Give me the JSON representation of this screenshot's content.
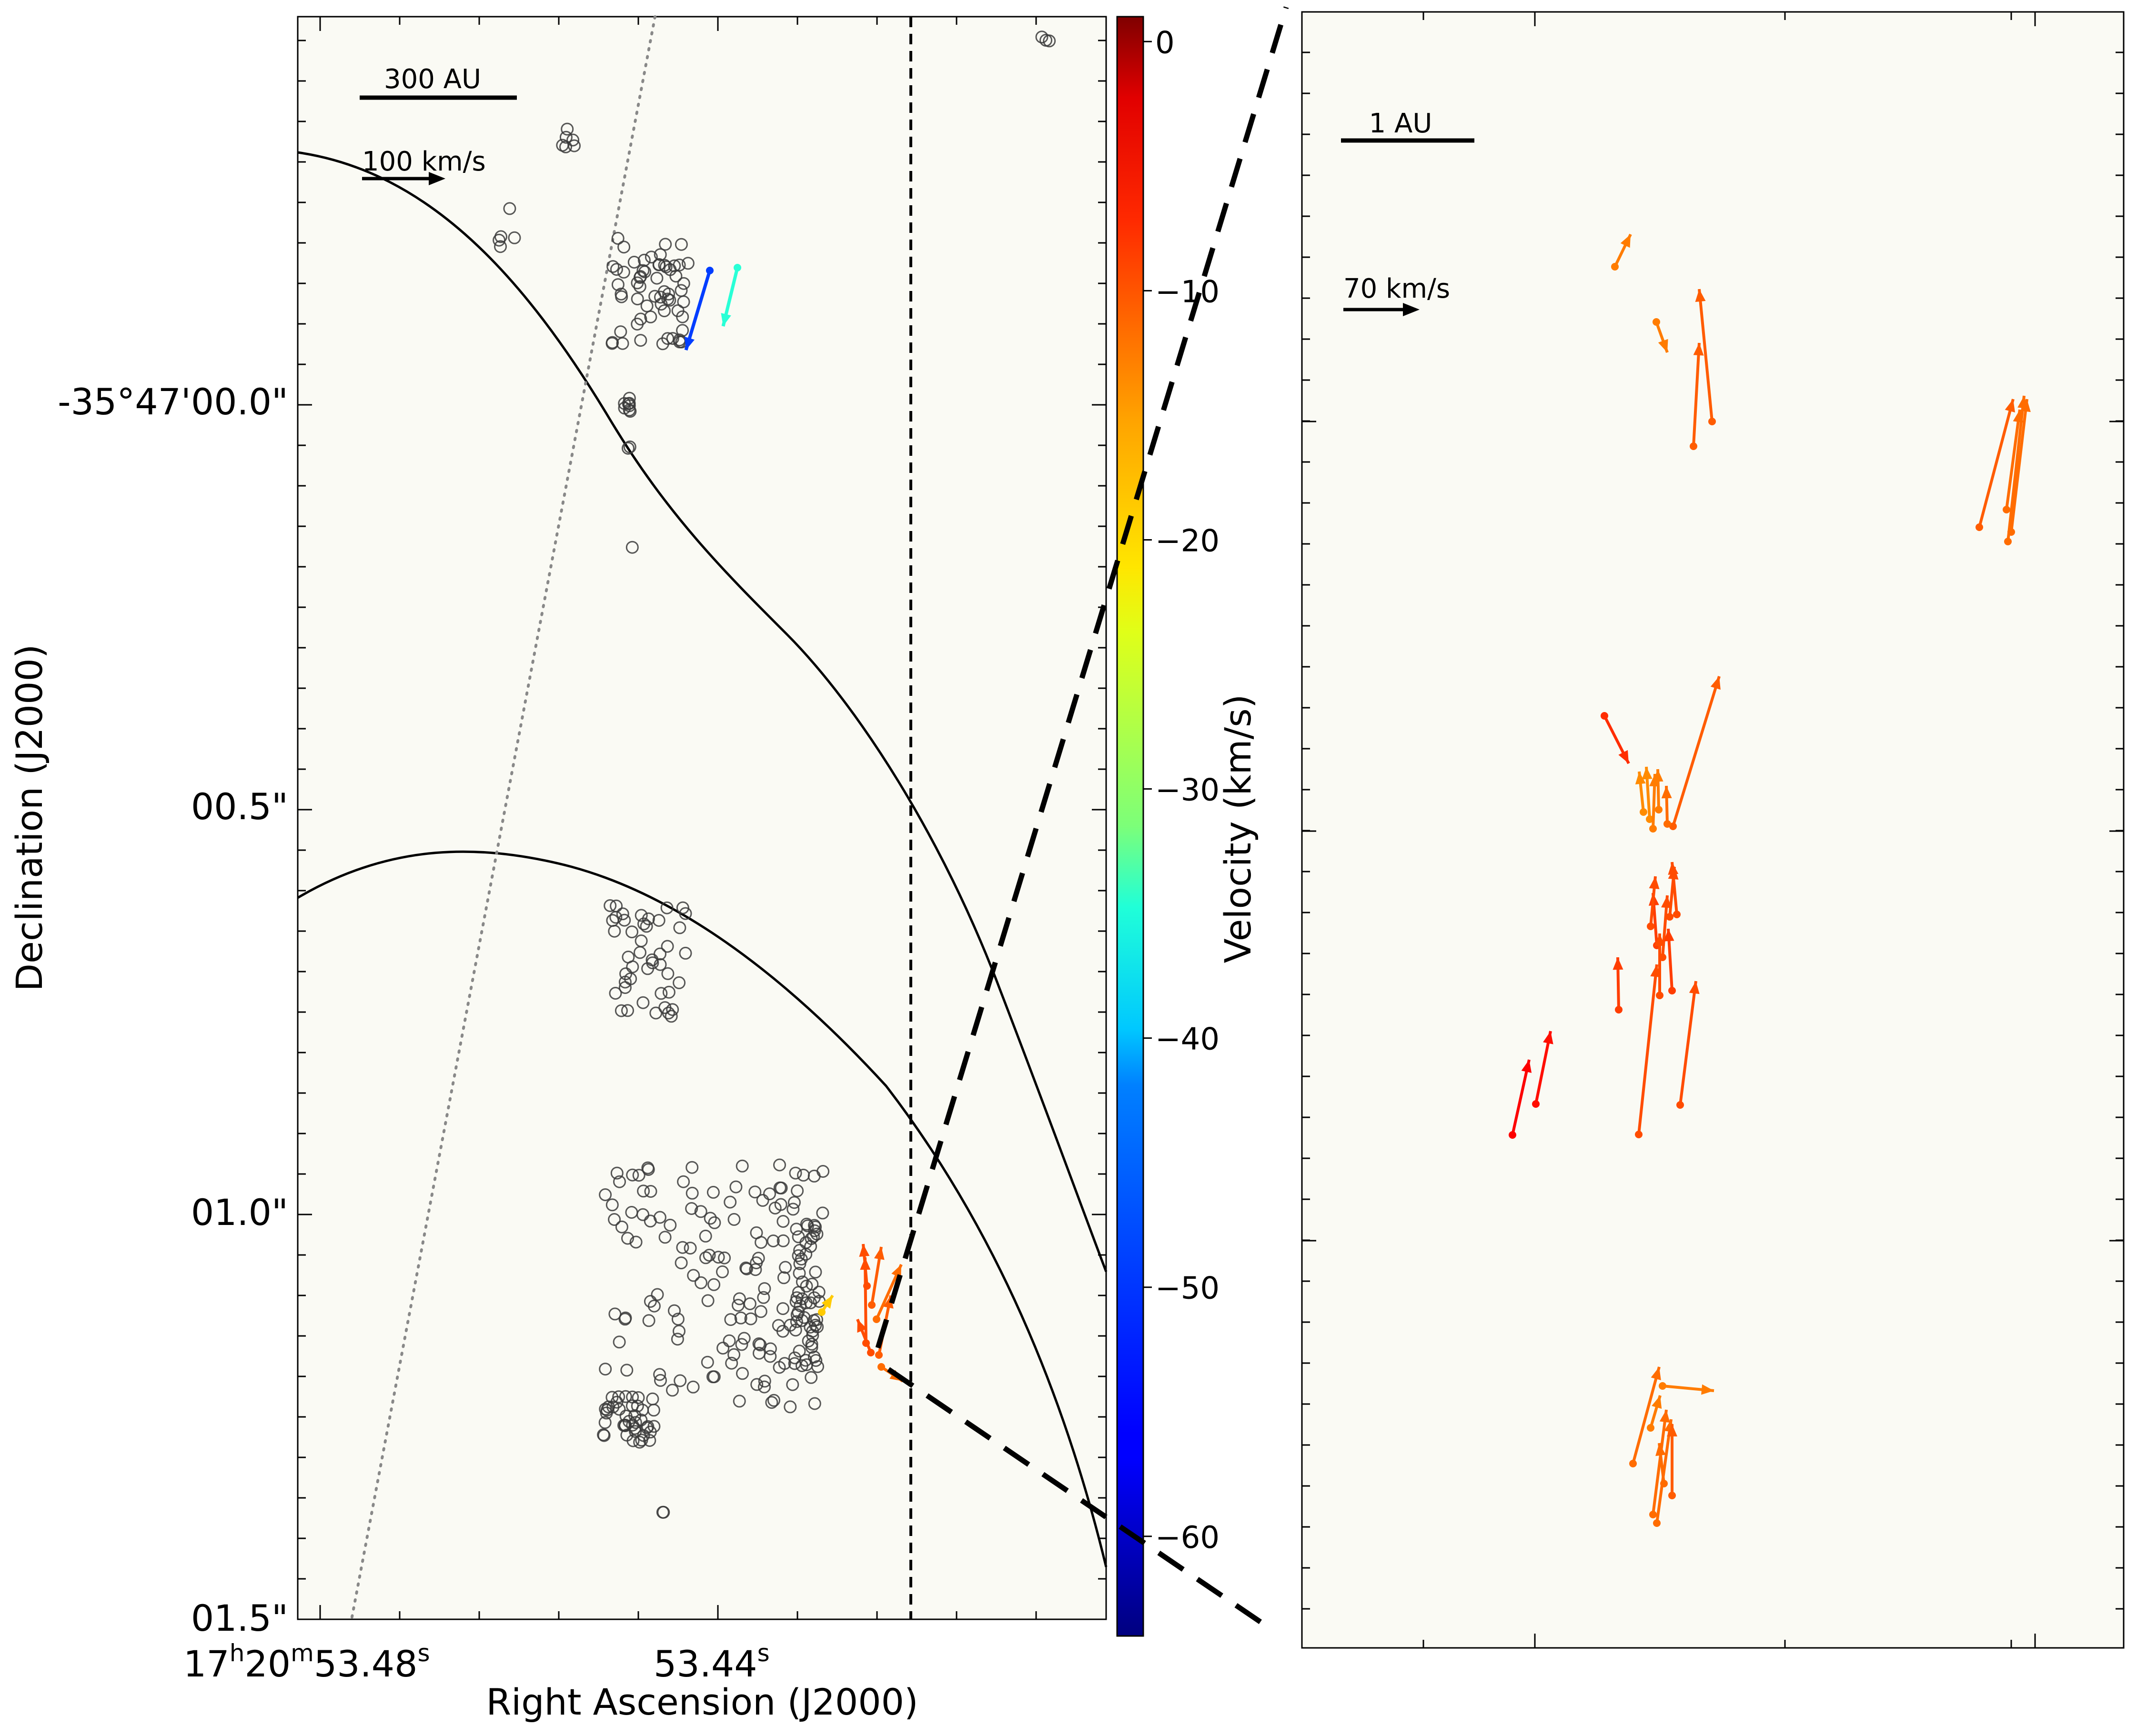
{
  "chart_data": [
    {
      "type": "scatter",
      "panel": "left",
      "xlabel": "Right Ascension (J2000)",
      "ylabel": "Declination (J2000)",
      "x_ticks": [
        {
          "pos": 0.0,
          "h": "17",
          "m": "20",
          "s": "53.48"
        },
        {
          "pos": 0.5,
          "h": "",
          "m": "",
          "s": "53.44"
        }
      ],
      "y_ticks": [
        {
          "pos": 0.24,
          "label": "-35°47'00.0\""
        },
        {
          "pos": 0.49,
          "label": "00.5\""
        },
        {
          "pos": 0.74,
          "label": "01.0\""
        },
        {
          "pos": 0.99,
          "label": "01.5\""
        }
      ],
      "scale_bar_label": "300 AU",
      "vector_key_label": "100 km/s",
      "markers": "open circles = maser spots",
      "vectors_color_by": "Velocity (km/s)"
    },
    {
      "type": "scatter",
      "panel": "right (zoom)",
      "scale_bar_label": "1 AU",
      "vector_key_label": "70 km/s",
      "vectors_color_by": "Velocity (km/s)"
    }
  ],
  "colorbar": {
    "label": "Velocity (km/s)",
    "min": -64,
    "max": 1,
    "ticks": [
      0,
      -10,
      -20,
      -30,
      -40,
      -50,
      -60
    ],
    "tick_labels": [
      "0",
      "−10",
      "−20",
      "−30",
      "−40",
      "−50",
      "−60"
    ],
    "colormap": "jet"
  }
}
